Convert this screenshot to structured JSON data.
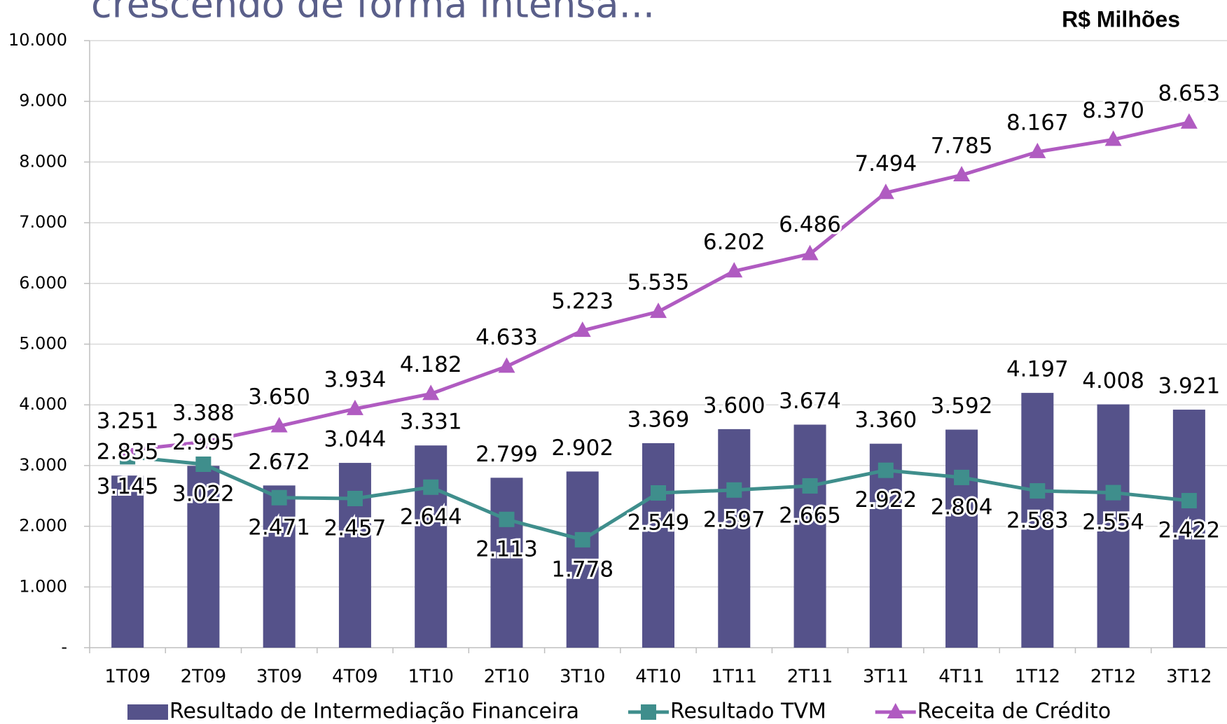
{
  "chart_data": {
    "type": "bar_line",
    "title": "crescendo de forma intensa...",
    "unit_label": "R$ Milhões",
    "categories": [
      "1T09",
      "2T09",
      "3T09",
      "4T09",
      "1T10",
      "2T10",
      "3T10",
      "4T10",
      "1T11",
      "2T11",
      "3T11",
      "4T11",
      "1T12",
      "2T12",
      "3T12"
    ],
    "series": [
      {
        "name": "Resultado de Intermediação Financeira",
        "kind": "bar",
        "color": "#55528a",
        "values": [
          2835,
          2995,
          2672,
          3044,
          3331,
          2799,
          2902,
          3369,
          3600,
          3674,
          3360,
          3592,
          4197,
          4008,
          3921
        ],
        "value_labels": [
          "2.835",
          "2.995",
          "2.672",
          "3.044",
          "3.331",
          "2.799",
          "2.902",
          "3.369",
          "3.600",
          "3.674",
          "3.360",
          "3.592",
          "4.197",
          "4.008",
          "3.921"
        ]
      },
      {
        "name": "Resultado TVM",
        "kind": "line",
        "marker": "square",
        "color": "#3f8e8c",
        "values": [
          3145,
          3022,
          2471,
          2457,
          2644,
          2113,
          1778,
          2549,
          2597,
          2665,
          2922,
          2804,
          2583,
          2554,
          2422
        ],
        "value_labels": [
          "3.145",
          "3.022",
          "2.471",
          "2.457",
          "2.644",
          "2.113",
          "1.778",
          "2.549",
          "2.597",
          "2.665",
          "2.922",
          "2.804",
          "2.583",
          "2.554",
          "2.422"
        ]
      },
      {
        "name": "Receita de Crédito",
        "kind": "line",
        "marker": "triangle",
        "color": "#b05bc1",
        "values": [
          3251,
          3388,
          3650,
          3934,
          4182,
          4633,
          5223,
          5535,
          6202,
          6486,
          7494,
          7785,
          8167,
          8370,
          8653
        ],
        "value_labels": [
          "3.251",
          "3.388",
          "3.650",
          "3.934",
          "4.182",
          "4.633",
          "5.223",
          "5.535",
          "6.202",
          "6.486",
          "7.494",
          "7.785",
          "8.167",
          "8.370",
          "8.653"
        ]
      }
    ],
    "ylim": [
      0,
      10000
    ],
    "yticks": [
      {
        "value": 0,
        "label": "-"
      },
      {
        "value": 1000,
        "label": "1.000"
      },
      {
        "value": 2000,
        "label": "2.000"
      },
      {
        "value": 3000,
        "label": "3.000"
      },
      {
        "value": 4000,
        "label": "4.000"
      },
      {
        "value": 5000,
        "label": "5.000"
      },
      {
        "value": 6000,
        "label": "6.000"
      },
      {
        "value": 7000,
        "label": "7.000"
      },
      {
        "value": 8000,
        "label": "8.000"
      },
      {
        "value": 9000,
        "label": "9.000"
      },
      {
        "value": 10000,
        "label": "10.000"
      }
    ],
    "grid": true,
    "legend": "bottom"
  }
}
